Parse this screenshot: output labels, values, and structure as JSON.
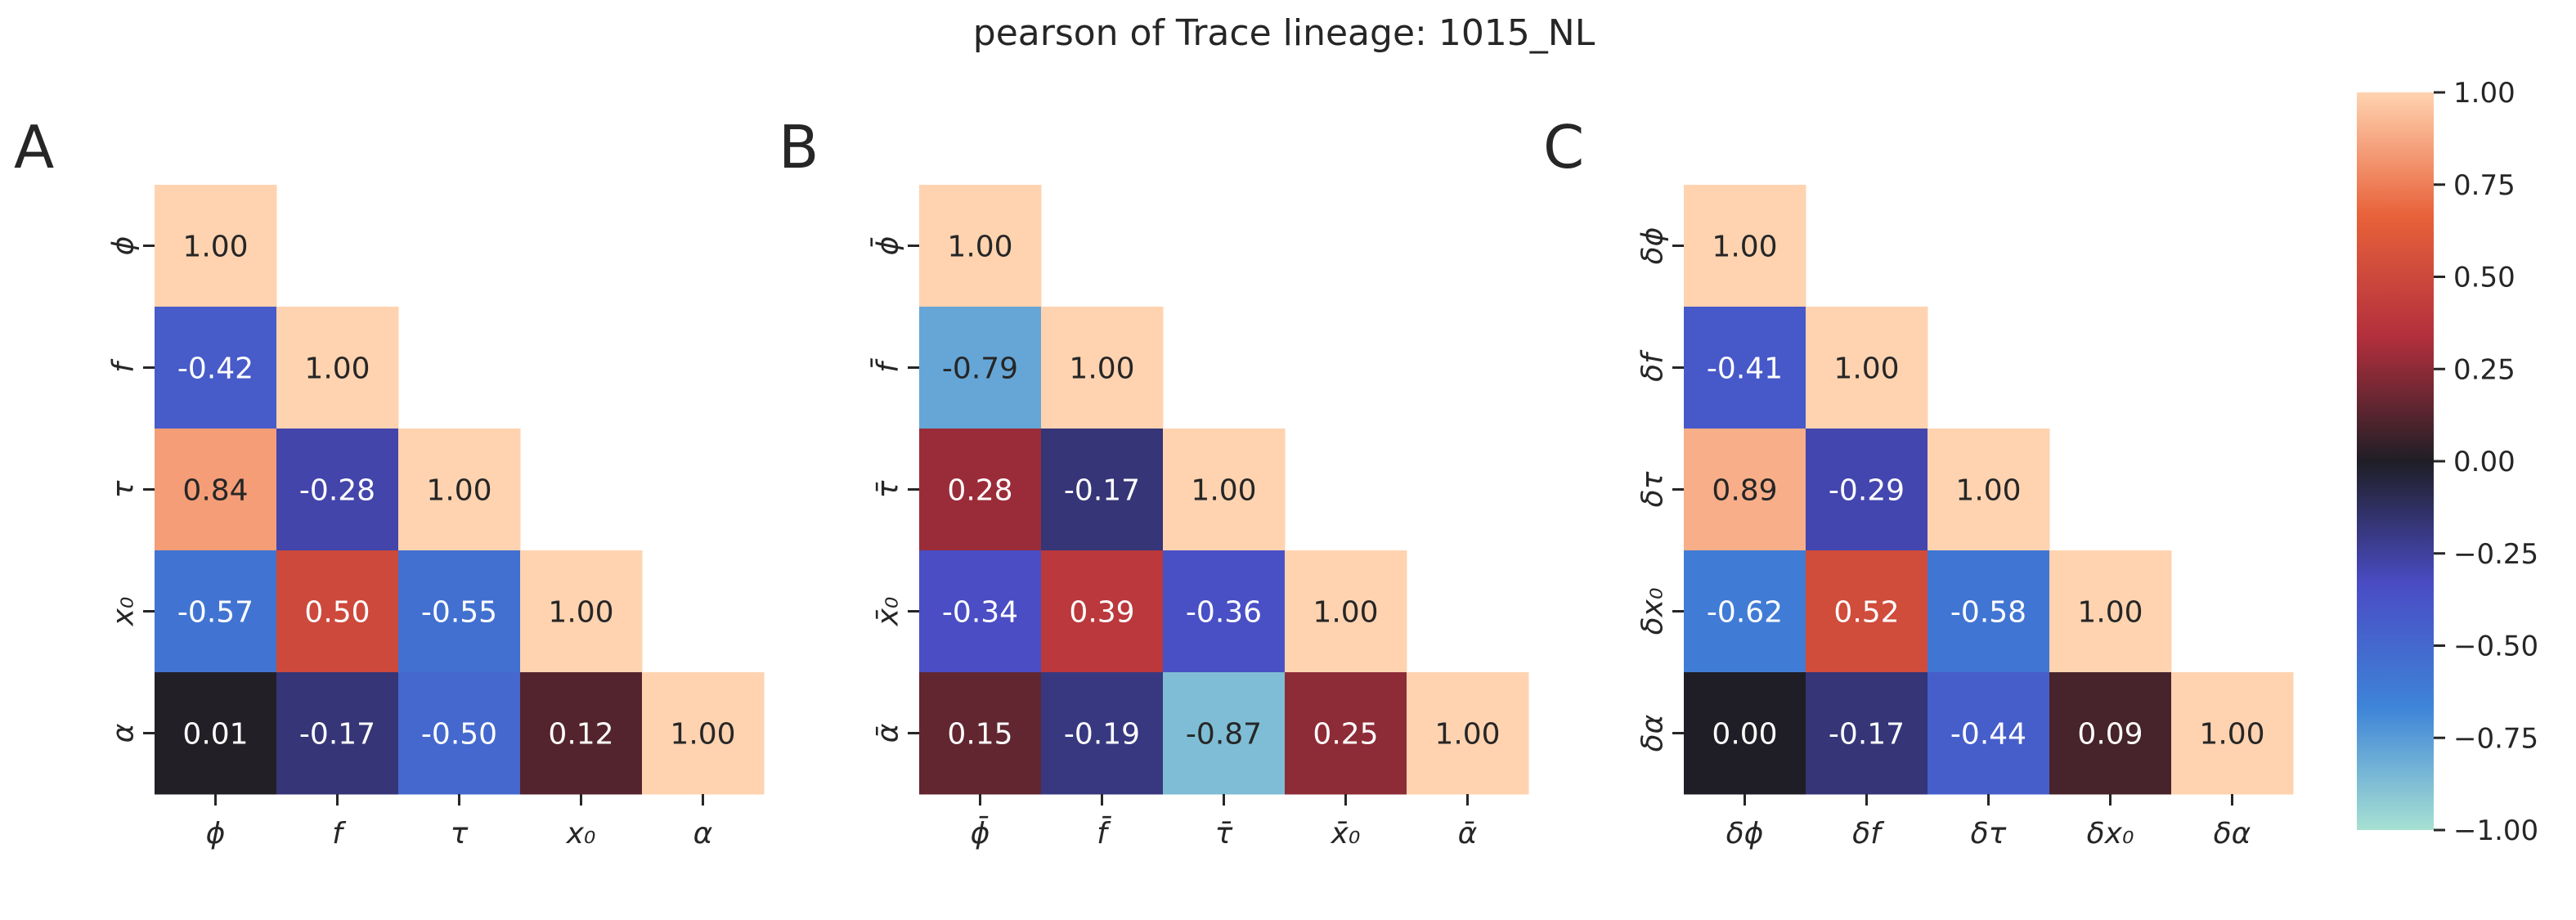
{
  "title": "pearson of Trace lineage: 1015_NL",
  "chart_data": [
    {
      "type": "heatmap",
      "panel": "A",
      "labels": [
        "ϕ",
        "f",
        "τ",
        "x₀",
        "α"
      ],
      "values": [
        [
          1.0
        ],
        [
          -0.42,
          1.0
        ],
        [
          0.84,
          -0.28,
          1.0
        ],
        [
          -0.57,
          0.5,
          -0.55,
          1.0
        ],
        [
          0.01,
          -0.17,
          -0.5,
          0.12,
          1.0
        ]
      ]
    },
    {
      "type": "heatmap",
      "panel": "B",
      "labels": [
        "ϕ̄",
        "f̄",
        "τ̄",
        "x̄₀",
        "ᾱ"
      ],
      "values": [
        [
          1.0
        ],
        [
          -0.79,
          1.0
        ],
        [
          0.28,
          -0.17,
          1.0
        ],
        [
          -0.34,
          0.39,
          -0.36,
          1.0
        ],
        [
          0.15,
          -0.19,
          -0.87,
          0.25,
          1.0
        ]
      ]
    },
    {
      "type": "heatmap",
      "panel": "C",
      "labels": [
        "δϕ",
        "δf",
        "δτ",
        "δx₀",
        "δα"
      ],
      "values": [
        [
          1.0
        ],
        [
          -0.41,
          1.0
        ],
        [
          0.89,
          -0.29,
          1.0
        ],
        [
          -0.62,
          0.52,
          -0.58,
          1.0
        ],
        [
          0.0,
          -0.17,
          -0.44,
          0.09,
          1.0
        ]
      ]
    }
  ],
  "colorbar": {
    "range": [
      -1.0,
      1.0
    ],
    "ticks": [
      "1.00",
      "0.75",
      "0.50",
      "0.25",
      "0.00",
      "−0.25",
      "−0.50",
      "−0.75",
      "−1.00"
    ],
    "tick_values": [
      1.0,
      0.75,
      0.5,
      0.25,
      0.0,
      -0.25,
      -0.5,
      -0.75,
      -1.0
    ]
  },
  "colors": {
    "stops": [
      "#a7e1d3",
      "#3e84d8",
      "#4a4cc4",
      "#1f1e26",
      "#b22f3d",
      "#e8623a",
      "#ffd3b0"
    ]
  }
}
